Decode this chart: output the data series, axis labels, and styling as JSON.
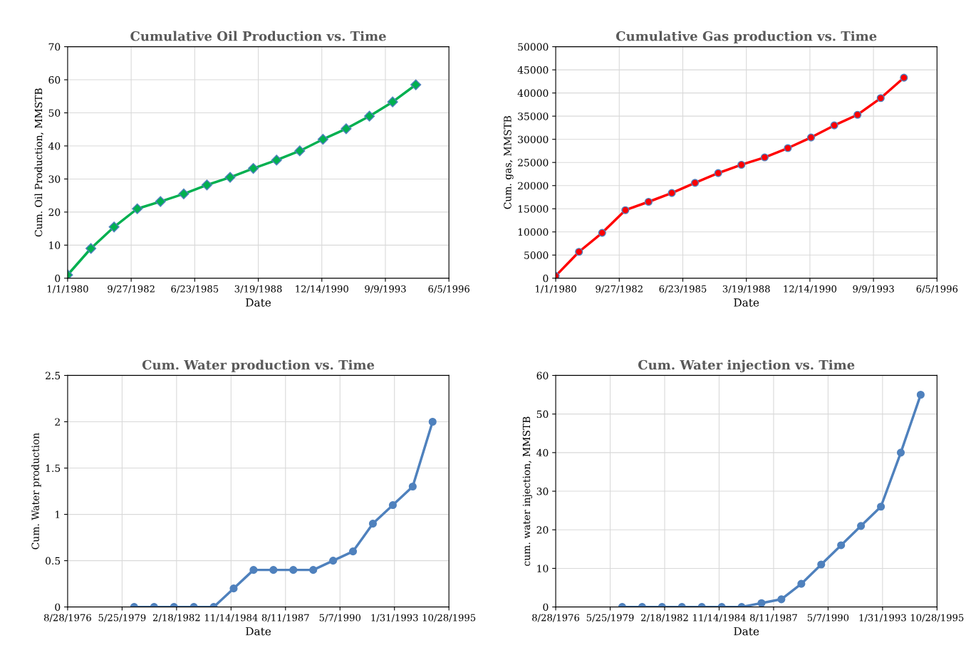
{
  "chart_data": [
    {
      "type": "line",
      "title": "Cumulative Oil Production vs. Time",
      "xlabel": "Date",
      "ylabel": "Cum. Oil Production, MMSTB",
      "marker": "diamond",
      "grid": true,
      "legend": false,
      "x": [
        "1980-01-01",
        "1981-01-01",
        "1982-01-01",
        "1983-01-01",
        "1984-01-01",
        "1985-01-01",
        "1986-01-01",
        "1987-01-01",
        "1988-01-01",
        "1989-01-01",
        "1990-01-01",
        "1991-01-01",
        "1992-01-01",
        "1993-01-01",
        "1994-01-01",
        "1995-01-01"
      ],
      "series": [
        {
          "color": "#00b050",
          "values": [
            1,
            9,
            15.5,
            21,
            23.2,
            25.5,
            28.2,
            30.5,
            33.2,
            35.7,
            38.5,
            42,
            45.2,
            49,
            53.3,
            58.5
          ]
        }
      ],
      "xlim": [
        "1980-01-01",
        "1996-06-05"
      ],
      "xticks": [
        {
          "value": "1980-01-01",
          "label": "1/1/1980"
        },
        {
          "value": "1982-09-27",
          "label": "9/27/1982"
        },
        {
          "value": "1985-06-23",
          "label": "6/23/1985"
        },
        {
          "value": "1988-03-19",
          "label": "3/19/1988"
        },
        {
          "value": "1990-12-14",
          "label": "12/14/1990"
        },
        {
          "value": "1993-09-09",
          "label": "9/9/1993"
        },
        {
          "value": "1996-06-05",
          "label": "6/5/1996"
        }
      ],
      "ylim": [
        0,
        70
      ],
      "yticks": [
        0,
        10,
        20,
        30,
        40,
        50,
        60,
        70
      ]
    },
    {
      "type": "line",
      "title": "Cumulative Gas production vs. Time",
      "xlabel": "Date",
      "ylabel": "Cum. gas, MMSTB",
      "marker": "circle",
      "grid": true,
      "legend": false,
      "x": [
        "1980-01-01",
        "1981-01-01",
        "1982-01-01",
        "1983-01-01",
        "1984-01-01",
        "1985-01-01",
        "1986-01-01",
        "1987-01-01",
        "1988-01-01",
        "1989-01-01",
        "1990-01-01",
        "1991-01-01",
        "1992-01-01",
        "1993-01-01",
        "1994-01-01",
        "1995-01-01"
      ],
      "series": [
        {
          "color": "#ff0000",
          "values": [
            500,
            5700,
            9800,
            14700,
            16500,
            18400,
            20600,
            22700,
            24500,
            26100,
            28100,
            30400,
            33000,
            35300,
            38900,
            43300
          ]
        }
      ],
      "xlim": [
        "1980-01-01",
        "1996-06-05"
      ],
      "xticks": [
        {
          "value": "1980-01-01",
          "label": "1/1/1980"
        },
        {
          "value": "1982-09-27",
          "label": "9/27/1982"
        },
        {
          "value": "1985-06-23",
          "label": "6/23/1985"
        },
        {
          "value": "1988-03-19",
          "label": "3/19/1988"
        },
        {
          "value": "1990-12-14",
          "label": "12/14/1990"
        },
        {
          "value": "1993-09-09",
          "label": "9/9/1993"
        },
        {
          "value": "1996-06-05",
          "label": "6/5/1996"
        }
      ],
      "ylim": [
        0,
        50000
      ],
      "yticks": [
        0,
        5000,
        10000,
        15000,
        20000,
        25000,
        30000,
        35000,
        40000,
        45000,
        50000
      ]
    },
    {
      "type": "line",
      "title": "Cum. Water production vs. Time",
      "xlabel": "Date",
      "ylabel": "Cum. Water production",
      "marker": "circle",
      "grid": true,
      "legend": false,
      "x": [
        "1980-01-01",
        "1981-01-01",
        "1982-01-01",
        "1983-01-01",
        "1984-01-01",
        "1985-01-01",
        "1986-01-01",
        "1987-01-01",
        "1988-01-01",
        "1989-01-01",
        "1990-01-01",
        "1991-01-01",
        "1992-01-01",
        "1993-01-01",
        "1994-01-01",
        "1995-01-01"
      ],
      "series": [
        {
          "color": "#4f81bd",
          "values": [
            0,
            0,
            0,
            0,
            0,
            0.2,
            0.4,
            0.4,
            0.4,
            0.4,
            0.5,
            0.6,
            0.9,
            1.1,
            1.3,
            2
          ]
        }
      ],
      "xlim": [
        "1976-08-28",
        "1995-10-28"
      ],
      "xticks": [
        {
          "value": "1976-08-28",
          "label": "8/28/1976"
        },
        {
          "value": "1979-05-25",
          "label": "5/25/1979"
        },
        {
          "value": "1982-02-18",
          "label": "2/18/1982"
        },
        {
          "value": "1984-11-14",
          "label": "11/14/1984"
        },
        {
          "value": "1987-08-11",
          "label": "8/11/1987"
        },
        {
          "value": "1990-05-07",
          "label": "5/7/1990"
        },
        {
          "value": "1993-01-31",
          "label": "1/31/1993"
        },
        {
          "value": "1995-10-28",
          "label": "10/28/1995"
        }
      ],
      "ylim": [
        0,
        2.5
      ],
      "yticks": [
        0,
        0.5,
        1,
        1.5,
        2,
        2.5
      ]
    },
    {
      "type": "line",
      "title": "Cum. Water injection vs. Time",
      "xlabel": "Date",
      "ylabel": "cum. water injection, MMSTB",
      "marker": "circle",
      "grid": true,
      "legend": false,
      "x": [
        "1980-01-01",
        "1981-01-01",
        "1982-01-01",
        "1983-01-01",
        "1984-01-01",
        "1985-01-01",
        "1986-01-01",
        "1987-01-01",
        "1988-01-01",
        "1989-01-01",
        "1990-01-01",
        "1991-01-01",
        "1992-01-01",
        "1993-01-01",
        "1994-01-01",
        "1995-01-01"
      ],
      "series": [
        {
          "color": "#4f81bd",
          "values": [
            0,
            0,
            0,
            0,
            0,
            0,
            0,
            1,
            2,
            6,
            11,
            16,
            21,
            26,
            40,
            55
          ]
        }
      ],
      "xlim": [
        "1976-08-28",
        "1995-10-28"
      ],
      "xticks": [
        {
          "value": "1976-08-28",
          "label": "8/28/1976"
        },
        {
          "value": "1979-05-25",
          "label": "5/25/1979"
        },
        {
          "value": "1982-02-18",
          "label": "2/18/1982"
        },
        {
          "value": "1984-11-14",
          "label": "11/14/1984"
        },
        {
          "value": "1987-08-11",
          "label": "8/11/1987"
        },
        {
          "value": "1990-05-07",
          "label": "5/7/1990"
        },
        {
          "value": "1993-01-31",
          "label": "1/31/1993"
        },
        {
          "value": "1995-10-28",
          "label": "10/28/1995"
        }
      ],
      "ylim": [
        0,
        60
      ],
      "yticks": [
        0,
        10,
        20,
        30,
        40,
        50,
        60
      ]
    }
  ]
}
